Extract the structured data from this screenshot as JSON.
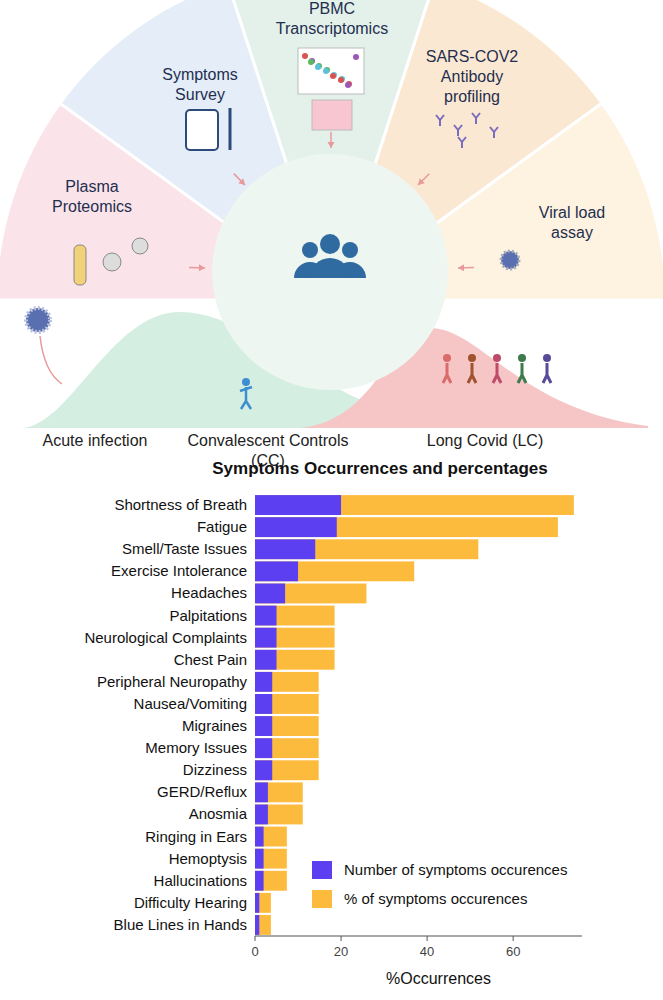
{
  "diagram": {
    "sectors": [
      {
        "lines": [
          "Plasma",
          "Proteomics"
        ],
        "color": "#fbe3ea"
      },
      {
        "lines": [
          "Symptoms",
          "Survey"
        ],
        "color": "#e4edf8"
      },
      {
        "lines": [
          "PBMC",
          "Transcriptomics"
        ],
        "color": "#e3f1ea"
      },
      {
        "lines": [
          "SARS-COV2",
          "Antibody",
          "profiling"
        ],
        "color": "#fbe8d2"
      },
      {
        "lines": [
          "Viral load",
          "assay"
        ],
        "color": "#fdf3e0"
      }
    ],
    "curves": [
      {
        "lines": [
          "Acute infection"
        ],
        "color": "#d5eee2"
      },
      {
        "lines": [
          "Convalescent Controls",
          "(CC)"
        ],
        "color": "#d5eee2"
      },
      {
        "lines": [
          "Long Covid (LC)"
        ],
        "color": "#f6c6c6"
      }
    ]
  },
  "chart_data": {
    "type": "bar",
    "orientation": "horizontal",
    "stacked": false,
    "title": "Symptoms Occurrences and percentages",
    "x_label": "%Occurrences",
    "categories": [
      "Shortness of Breath",
      "Fatigue",
      "Smell/Taste Issues",
      "Exercise Intolerance",
      "Headaches",
      "Palpitations",
      "Neurological Complaints",
      "Chest Pain",
      "Peripheral Neuropathy",
      "Nausea/Vomiting",
      "Migraines",
      "Memory Issues",
      "Dizziness",
      "GERD/Reflux",
      "Anosmia",
      "Ringing in Ears",
      "Hemoptysis",
      "Hallucinations",
      "Difficulty Hearing",
      "Blue Lines in Hands"
    ],
    "series": [
      {
        "name": "Number of symptoms occurences",
        "color": "#5b3ff0",
        "values": [
          20,
          19,
          14,
          10,
          7,
          5,
          5,
          5,
          4,
          4,
          4,
          4,
          4,
          3,
          3,
          2,
          2,
          2,
          1,
          1
        ]
      },
      {
        "name": "% of symptoms occurences",
        "color": "#fdbb3e",
        "values": [
          74.1,
          70.4,
          51.9,
          37.0,
          25.9,
          18.5,
          18.5,
          18.5,
          14.8,
          14.8,
          14.8,
          14.8,
          14.8,
          11.1,
          11.1,
          7.4,
          7.4,
          7.4,
          3.7,
          3.7
        ]
      }
    ],
    "xlim": [
      0,
      76
    ],
    "xticks": [
      0,
      20,
      40,
      60
    ],
    "grid": false,
    "legend": "lower right"
  }
}
